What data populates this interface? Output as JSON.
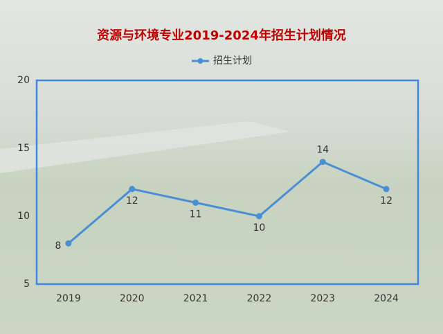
{
  "chart_data": {
    "type": "line",
    "title": "资源与环境专业2019-2024年招生计划情况",
    "categories": [
      "2019",
      "2020",
      "2021",
      "2022",
      "2023",
      "2024"
    ],
    "series": [
      {
        "name": "招生计划",
        "color": "#4a8fd6",
        "values": [
          8,
          12,
          11,
          10,
          14,
          12
        ]
      }
    ],
    "ylim": [
      5,
      20
    ],
    "yticks": [
      5,
      10,
      15,
      20
    ],
    "grid": false,
    "legend": "top"
  }
}
